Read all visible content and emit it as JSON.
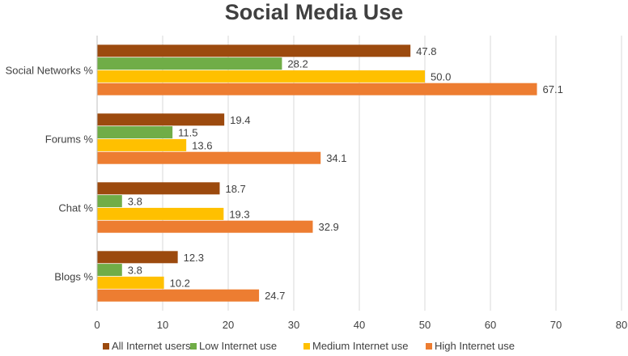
{
  "chart_data": {
    "type": "bar",
    "orientation": "horizontal",
    "title": "Social Media Use",
    "xlabel": "",
    "ylabel": "",
    "xlim": [
      0,
      80
    ],
    "ticks": [
      0,
      10,
      20,
      30,
      40,
      50,
      60,
      70,
      80
    ],
    "grid": true,
    "legend_position": "bottom",
    "categories": [
      "Social Networks %",
      "Forums %",
      "Chat %",
      "Blogs %"
    ],
    "series": [
      {
        "name": "All Internet users",
        "color": "#9C4A0E",
        "values": [
          47.8,
          19.4,
          18.7,
          12.3
        ]
      },
      {
        "name": "Low Internet use",
        "color": "#70AD47",
        "values": [
          28.2,
          11.5,
          3.8,
          3.8
        ]
      },
      {
        "name": "Medium Internet use",
        "color": "#FFC000",
        "values": [
          50.0,
          13.6,
          19.3,
          10.2
        ]
      },
      {
        "name": "High Internet use",
        "color": "#ED7D31",
        "values": [
          67.1,
          34.1,
          32.9,
          24.7
        ]
      }
    ]
  }
}
